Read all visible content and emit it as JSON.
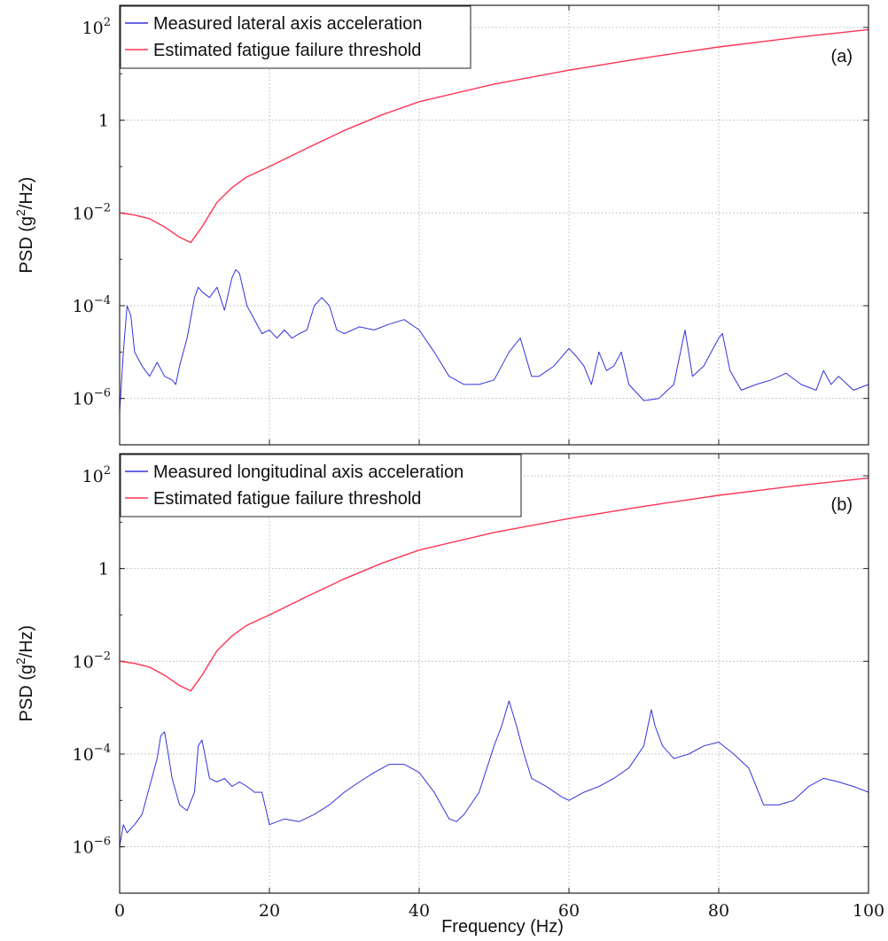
{
  "figure": {
    "xlabel": "Frequency (Hz)",
    "xticks": [
      "0",
      "20",
      "40",
      "60",
      "80",
      "100"
    ],
    "ylabel_prefix": "PSD (g",
    "ylabel_sup": "2",
    "ylabel_suffix": "/Hz)"
  },
  "chart_data": [
    {
      "type": "line",
      "panel": "(a)",
      "ylabel": "PSD (g²/Hz)",
      "xlabel": "",
      "xlim": [
        0,
        100
      ],
      "ylim": [
        1e-07,
        300
      ],
      "yscale": "log",
      "yticks": [
        {
          "base": "10",
          "exp": "2",
          "value": 100
        },
        {
          "base": "1",
          "exp": "",
          "value": 1
        },
        {
          "base": "10",
          "exp": "−2",
          "value": 0.01
        },
        {
          "base": "10",
          "exp": "−4",
          "value": 0.0001
        },
        {
          "base": "10",
          "exp": "−6",
          "value": 1e-06
        }
      ],
      "grid": true,
      "legend_position": "top-left",
      "series": [
        {
          "name": "Measured lateral axis acceleration",
          "color": "#3333dd",
          "x": [
            0,
            0.5,
            1,
            1.5,
            2,
            3,
            4,
            5,
            6,
            7,
            7.5,
            8,
            9,
            10,
            10.5,
            11,
            12,
            13,
            14,
            15,
            15.5,
            16,
            17,
            18,
            19,
            20,
            21,
            22,
            23,
            24,
            25,
            26,
            27,
            28,
            29,
            30,
            32,
            34,
            36,
            38,
            40,
            42,
            44,
            46,
            48,
            50,
            52,
            53.5,
            55,
            56,
            58,
            60,
            61,
            62,
            63,
            64,
            65,
            66,
            67,
            68,
            70,
            72,
            74,
            75.5,
            76.5,
            78,
            80,
            80.5,
            81.5,
            83,
            85,
            87,
            89,
            91,
            93,
            94,
            95,
            96,
            98,
            100
          ],
          "y": [
            5e-07,
            1e-05,
            0.0001,
            6e-05,
            1e-05,
            5e-06,
            3e-06,
            6e-06,
            3e-06,
            2.5e-06,
            2e-06,
            5e-06,
            2e-05,
            0.00015,
            0.00025,
            0.0002,
            0.00015,
            0.00025,
            8e-05,
            0.0004,
            0.0006,
            0.0005,
            0.0001,
            5e-05,
            2.5e-05,
            3e-05,
            2e-05,
            3e-05,
            2e-05,
            2.5e-05,
            3e-05,
            0.0001,
            0.00015,
            0.0001,
            3e-05,
            2.5e-05,
            3.5e-05,
            3e-05,
            4e-05,
            5e-05,
            3e-05,
            1e-05,
            3e-06,
            2e-06,
            2e-06,
            2.5e-06,
            1e-05,
            2e-05,
            3e-06,
            3e-06,
            5e-06,
            1.2e-05,
            8e-06,
            5e-06,
            2e-06,
            1e-05,
            4e-06,
            5e-06,
            1e-05,
            2e-06,
            9e-07,
            1e-06,
            2e-06,
            3e-05,
            3e-06,
            5e-06,
            2e-05,
            2.5e-05,
            4e-06,
            1.5e-06,
            2e-06,
            2.5e-06,
            3.5e-06,
            2e-06,
            1.5e-06,
            4e-06,
            2e-06,
            3e-06,
            1.5e-06,
            2e-06
          ]
        },
        {
          "name": "Estimated fatigue failure threshold",
          "color": "#ff3355",
          "x": [
            0,
            2,
            4,
            6,
            8,
            9.5,
            11,
            13,
            15,
            17,
            20,
            25,
            30,
            35,
            40,
            50,
            60,
            70,
            80,
            90,
            100
          ],
          "y": [
            0.01,
            0.009,
            0.0075,
            0.005,
            0.003,
            0.0023,
            0.005,
            0.017,
            0.035,
            0.06,
            0.1,
            0.25,
            0.6,
            1.3,
            2.5,
            6,
            12,
            22,
            38,
            60,
            90
          ]
        }
      ]
    },
    {
      "type": "line",
      "panel": "(b)",
      "ylabel": "PSD (g²/Hz)",
      "xlabel": "Frequency (Hz)",
      "xlim": [
        0,
        100
      ],
      "ylim": [
        1e-07,
        300
      ],
      "yscale": "log",
      "yticks": [
        {
          "base": "10",
          "exp": "2",
          "value": 100
        },
        {
          "base": "1",
          "exp": "",
          "value": 1
        },
        {
          "base": "10",
          "exp": "−2",
          "value": 0.01
        },
        {
          "base": "10",
          "exp": "−4",
          "value": 0.0001
        },
        {
          "base": "10",
          "exp": "−6",
          "value": 1e-06
        }
      ],
      "grid": true,
      "legend_position": "top-left",
      "series": [
        {
          "name": "Measured longitudinal axis acceleration",
          "color": "#3333dd",
          "x": [
            0,
            0.5,
            1,
            2,
            3,
            4,
            5,
            5.5,
            6,
            6.5,
            7,
            8,
            9,
            10,
            10.5,
            11,
            12,
            13,
            14,
            15,
            16,
            17,
            18,
            19,
            20,
            22,
            24,
            26,
            28,
            30,
            32,
            34,
            36,
            38,
            40,
            42,
            44,
            45,
            46,
            48,
            50,
            51,
            52,
            53,
            54,
            55,
            57,
            59,
            60,
            62,
            64,
            66,
            68,
            70,
            71,
            71.5,
            72.5,
            74,
            76,
            78,
            80,
            82,
            84,
            86,
            88,
            90,
            92,
            94,
            96,
            98,
            100
          ],
          "y": [
            1e-06,
            3e-06,
            2e-06,
            3e-06,
            5e-06,
            2e-05,
            8e-05,
            0.00025,
            0.0003,
            0.0001,
            3e-05,
            8e-06,
            6e-06,
            1.5e-05,
            0.00015,
            0.0002,
            3e-05,
            2.5e-05,
            3e-05,
            2e-05,
            2.5e-05,
            2e-05,
            1.5e-05,
            1.5e-05,
            3e-06,
            4e-06,
            3.5e-06,
            5e-06,
            8e-06,
            1.5e-05,
            2.5e-05,
            4e-05,
            6e-05,
            6e-05,
            4e-05,
            1.5e-05,
            4e-06,
            3.5e-06,
            5e-06,
            1.5e-05,
            0.00015,
            0.0004,
            0.0014,
            0.0004,
            0.0001,
            3e-05,
            2e-05,
            1.2e-05,
            1e-05,
            1.5e-05,
            2e-05,
            3e-05,
            5e-05,
            0.00015,
            0.0009,
            0.0004,
            0.00015,
            8e-05,
            0.0001,
            0.00015,
            0.00018,
            0.0001,
            5e-05,
            8e-06,
            8e-06,
            1e-05,
            2e-05,
            3e-05,
            2.5e-05,
            2e-05,
            1.5e-05
          ]
        },
        {
          "name": "Estimated fatigue failure threshold",
          "color": "#ff3355",
          "x": [
            0,
            2,
            4,
            6,
            8,
            9.5,
            11,
            13,
            15,
            17,
            20,
            25,
            30,
            35,
            40,
            50,
            60,
            70,
            80,
            90,
            100
          ],
          "y": [
            0.01,
            0.009,
            0.0075,
            0.005,
            0.003,
            0.0023,
            0.005,
            0.017,
            0.035,
            0.06,
            0.1,
            0.25,
            0.6,
            1.3,
            2.5,
            6,
            12,
            22,
            38,
            60,
            90
          ]
        }
      ]
    }
  ]
}
